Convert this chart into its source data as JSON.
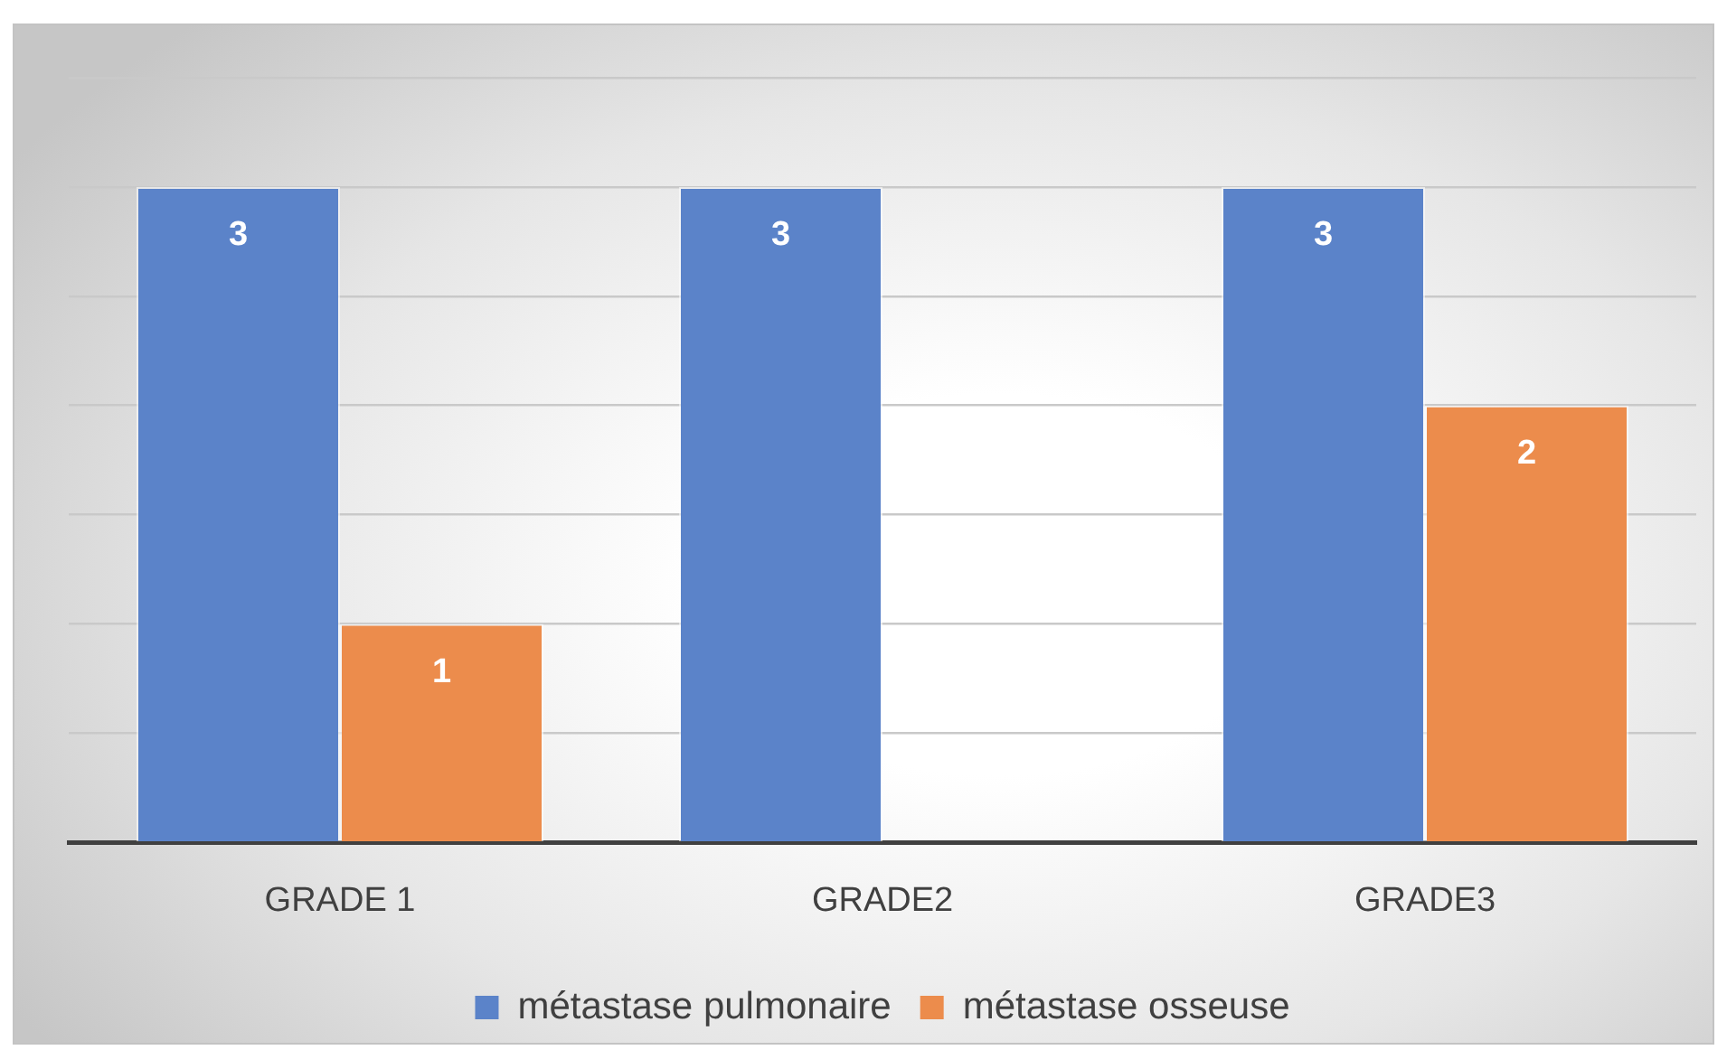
{
  "chart_data": {
    "type": "bar",
    "categories": [
      "GRADE 1",
      "GRADE2",
      "GRADE3"
    ],
    "series": [
      {
        "name": "métastase pulmonaire",
        "color": "#5b83c9",
        "values": [
          3,
          3,
          3
        ]
      },
      {
        "name": "métastase osseuse",
        "color": "#ec8c4c",
        "values": [
          1,
          null,
          2
        ]
      }
    ],
    "ylim": [
      0,
      3.5
    ],
    "yticks": [
      {
        "value": 0,
        "label": null
      },
      {
        "value": 0.5,
        "label": null
      },
      {
        "value": 1,
        "label": null
      },
      {
        "value": 1.5,
        "label": null
      },
      {
        "value": 2,
        "label": null
      },
      {
        "value": 2.5,
        "label": null
      },
      {
        "value": 3,
        "label": null
      },
      {
        "value": 3.5,
        "label": null
      }
    ],
    "grid": "y",
    "legend": "bottom",
    "tick_labels": "x",
    "data_labels": true
  }
}
